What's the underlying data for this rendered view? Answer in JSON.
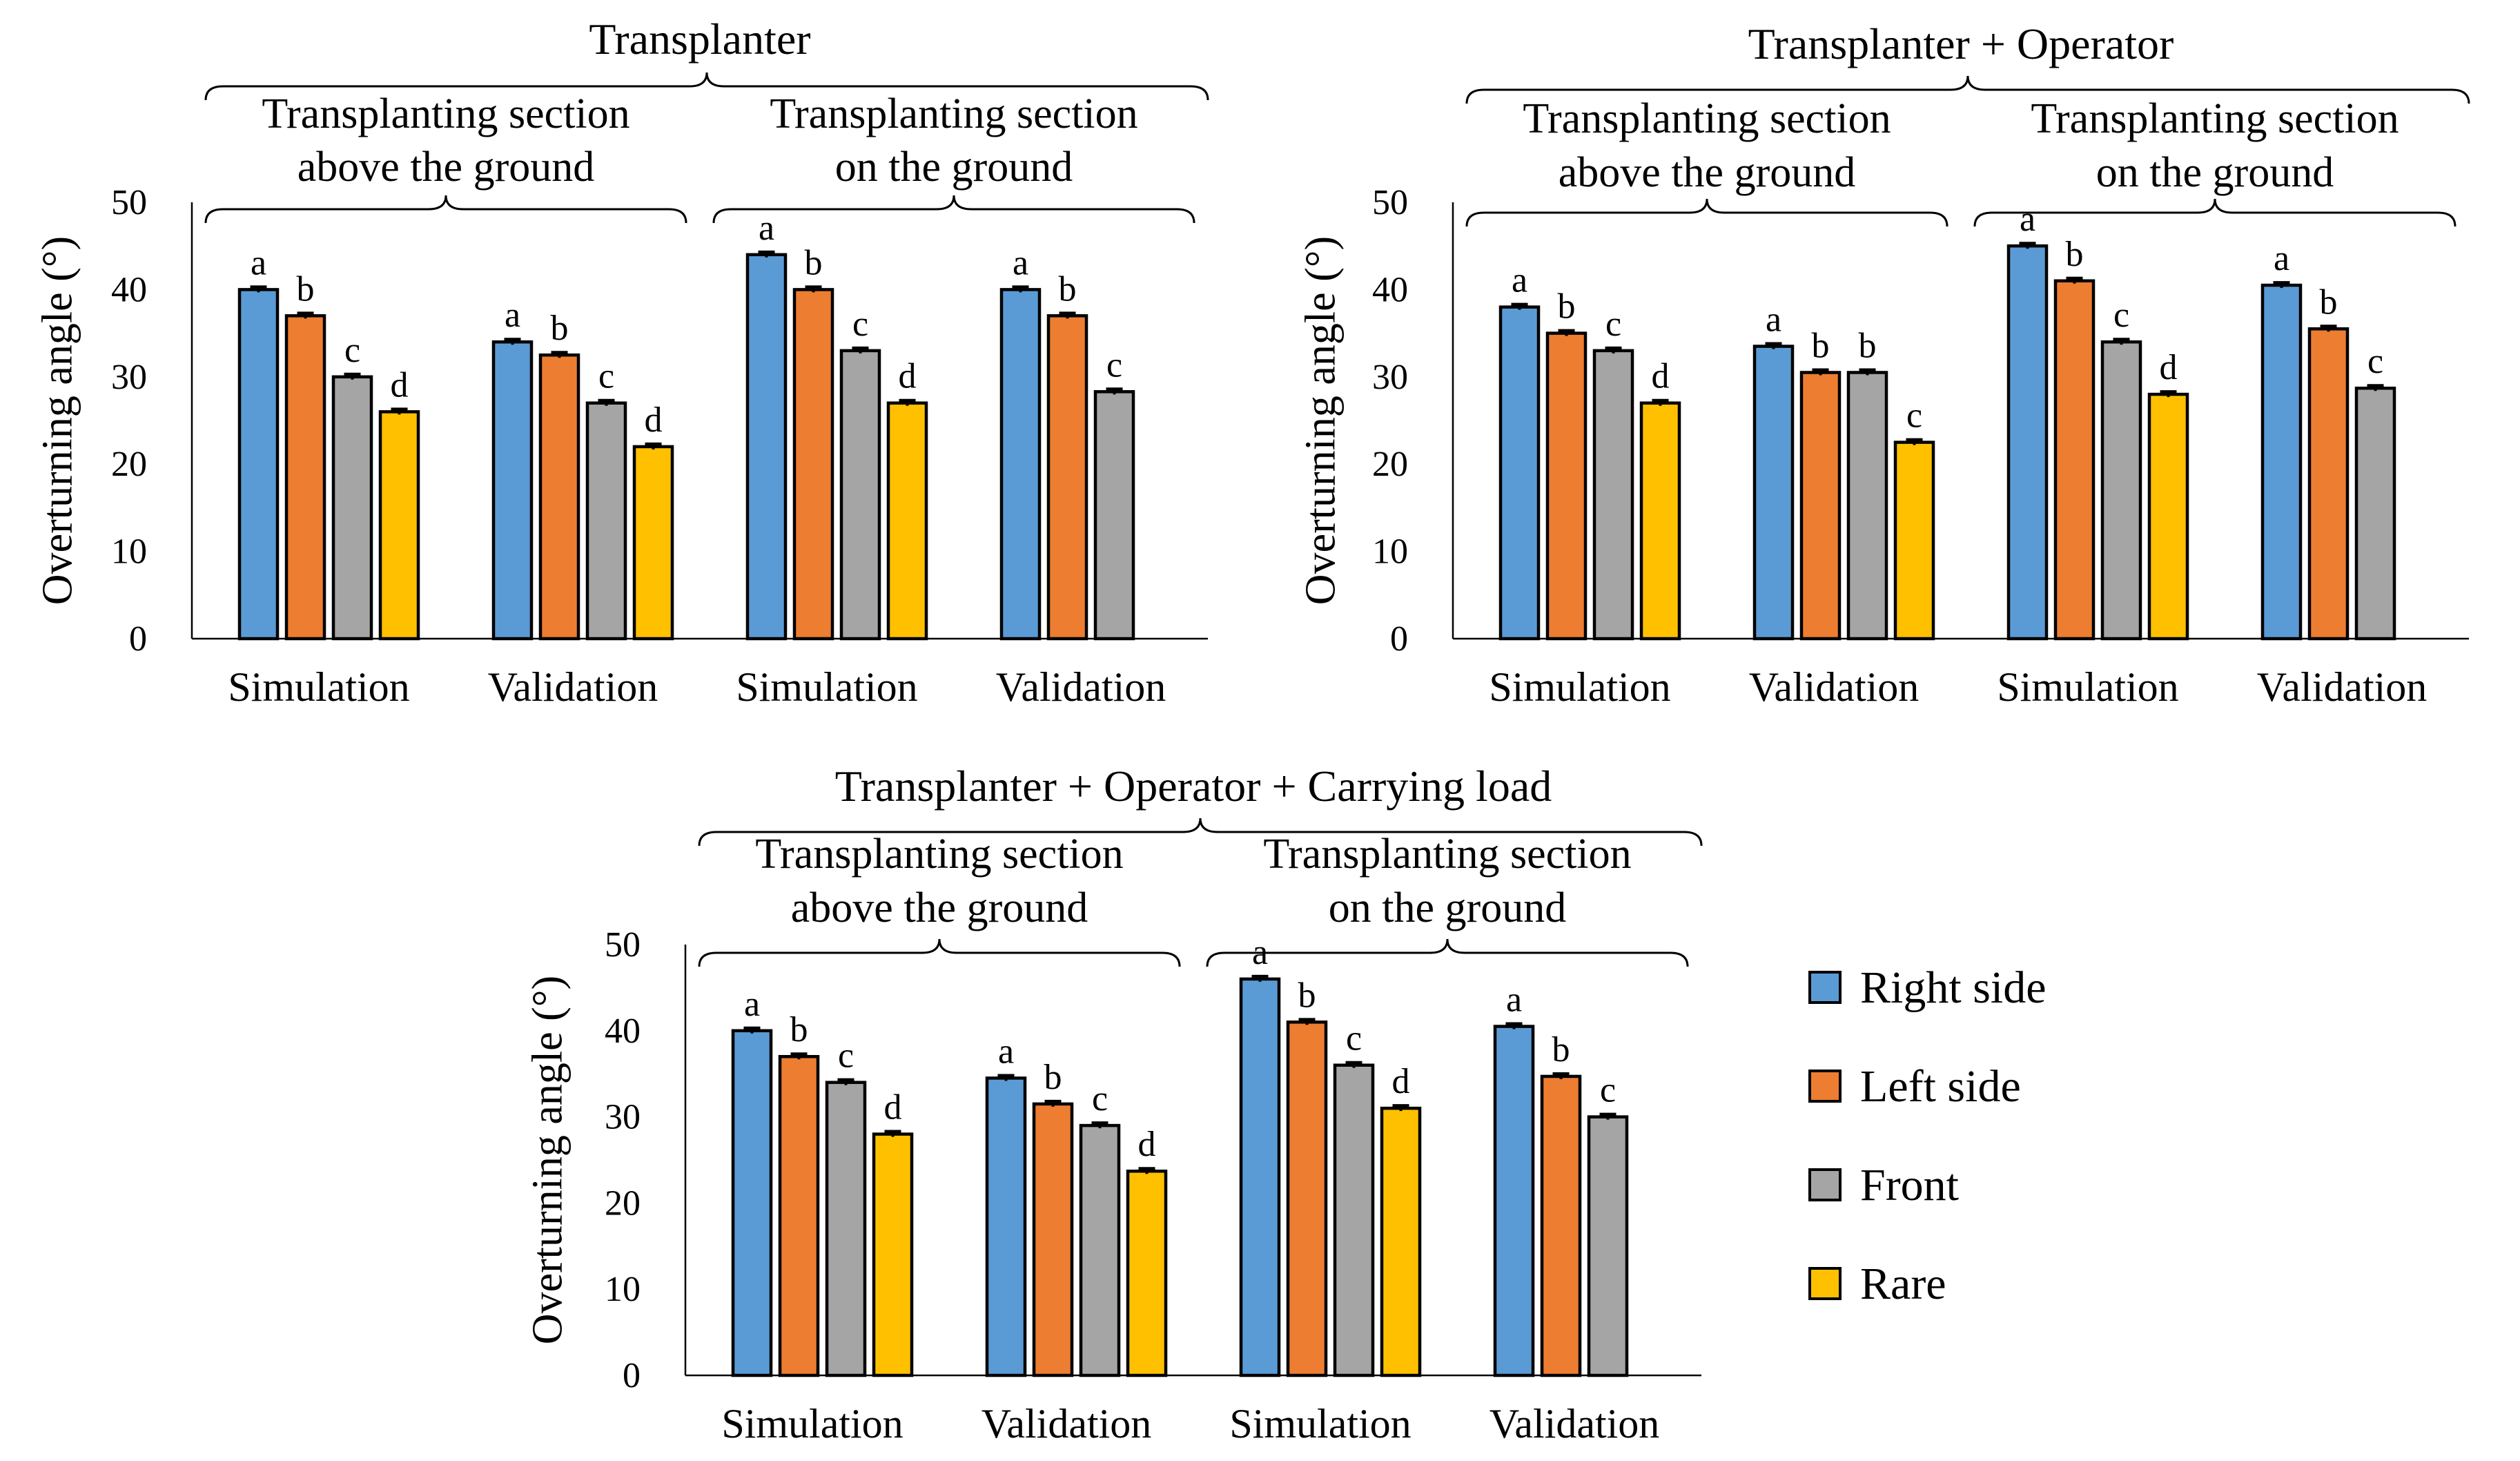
{
  "colors": {
    "right_side": "#5B9BD5",
    "left_side": "#ED7D31",
    "front": "#A5A5A5",
    "rare": "#FFC000",
    "error_bar": "#000000"
  },
  "legend": [
    {
      "key": "right_side",
      "label": "Right side"
    },
    {
      "key": "left_side",
      "label": "Left side"
    },
    {
      "key": "front",
      "label": "Front"
    },
    {
      "key": "rare",
      "label": "Rare"
    }
  ],
  "chart_data": [
    {
      "type": "bar",
      "title": "Transplanter",
      "ylabel": "Overturning angle (°)",
      "ylim": [
        0,
        50
      ],
      "yticks": [
        "0",
        "10",
        "20",
        "30",
        "40",
        "50"
      ],
      "sections": [
        "Transplanting section above the ground",
        "Transplanting section on the ground"
      ],
      "section_lines": [
        [
          "Transplanting section",
          "above the ground"
        ],
        [
          "Transplanting section",
          "on the ground"
        ]
      ],
      "categories": [
        "Simulation",
        "Validation",
        "Simulation",
        "Validation"
      ],
      "series": [
        {
          "name": "Right side",
          "values": [
            40,
            34,
            44,
            40
          ],
          "labels": [
            "a",
            "a",
            "a",
            "a"
          ]
        },
        {
          "name": "Left side",
          "values": [
            37,
            32.5,
            40,
            37
          ],
          "labels": [
            "b",
            "b",
            "b",
            "b"
          ]
        },
        {
          "name": "Front",
          "values": [
            30,
            27,
            33,
            28.3
          ],
          "labels": [
            "c",
            "c",
            "c",
            "c"
          ]
        },
        {
          "name": "Rare",
          "values": [
            26,
            22,
            27,
            null
          ],
          "labels": [
            "d",
            "d",
            "d",
            ""
          ]
        }
      ]
    },
    {
      "type": "bar",
      "title": "Transplanter + Operator",
      "ylabel": "Overturning angle (°)",
      "ylim": [
        0,
        50
      ],
      "yticks": [
        "0",
        "10",
        "20",
        "30",
        "40",
        "50"
      ],
      "sections": [
        "Transplanting section above the ground",
        "Transplanting section on the ground"
      ],
      "section_lines": [
        [
          "Transplanting section",
          "above the ground"
        ],
        [
          "Transplanting section",
          "on the ground"
        ]
      ],
      "categories": [
        "Simulation",
        "Validation",
        "Simulation",
        "Validation"
      ],
      "series": [
        {
          "name": "Right side",
          "values": [
            38,
            33.5,
            45,
            40.5
          ],
          "labels": [
            "a",
            "a",
            "a",
            "a"
          ]
        },
        {
          "name": "Left side",
          "values": [
            35,
            30.5,
            41,
            35.5
          ],
          "labels": [
            "b",
            "b",
            "b",
            "b"
          ]
        },
        {
          "name": "Front",
          "values": [
            33,
            30.5,
            34,
            28.7
          ],
          "labels": [
            "c",
            "b",
            "c",
            "c"
          ]
        },
        {
          "name": "Rare",
          "values": [
            27,
            22.5,
            28,
            null
          ],
          "labels": [
            "d",
            "c",
            "d",
            ""
          ]
        }
      ]
    },
    {
      "type": "bar",
      "title": "Transplanter + Operator + Carrying load",
      "ylabel": "Overturning angle (°)",
      "ylim": [
        0,
        50
      ],
      "yticks": [
        "0",
        "10",
        "20",
        "30",
        "40",
        "50"
      ],
      "sections": [
        "Transplanting section above the ground",
        "Transplanting section on the ground"
      ],
      "section_lines": [
        [
          "Transplanting section",
          "above the ground"
        ],
        [
          "Transplanting section",
          "on the ground"
        ]
      ],
      "categories": [
        "Simulation",
        "Validation",
        "Simulation",
        "Validation"
      ],
      "series": [
        {
          "name": "Right side",
          "values": [
            40,
            34.5,
            46,
            40.5
          ],
          "labels": [
            "a",
            "a",
            "a",
            "a"
          ]
        },
        {
          "name": "Left side",
          "values": [
            37,
            31.5,
            41,
            34.7
          ],
          "labels": [
            "b",
            "b",
            "b",
            "b"
          ]
        },
        {
          "name": "Front",
          "values": [
            34,
            29,
            36,
            30
          ],
          "labels": [
            "c",
            "c",
            "c",
            "c"
          ]
        },
        {
          "name": "Rare",
          "values": [
            28,
            23.7,
            31,
            null
          ],
          "labels": [
            "d",
            "d",
            "d",
            ""
          ]
        }
      ]
    }
  ]
}
